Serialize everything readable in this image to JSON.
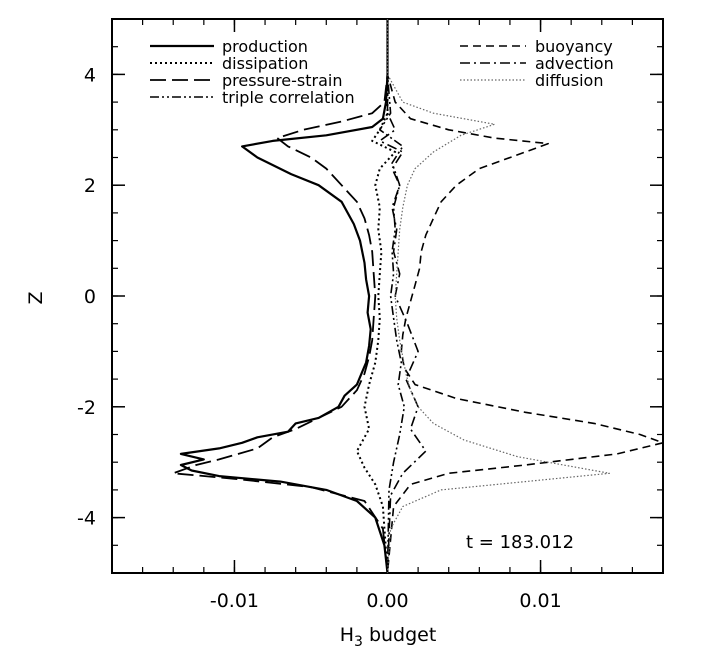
{
  "chart_data": {
    "type": "line",
    "xlabel": "H",
    "xlabel_sub": "3",
    "xlabel_rest": " budget",
    "ylabel": "Z",
    "xlim": [
      -0.018,
      0.018
    ],
    "ylim": [
      -5,
      5
    ],
    "xticks": [
      -0.01,
      0.0,
      0.01
    ],
    "xtick_labels": [
      "-0.01",
      "0.00",
      "0.01"
    ],
    "yticks": [
      -4,
      -2,
      0,
      2,
      4
    ],
    "ytick_labels": [
      "-4",
      "-2",
      "0",
      "2",
      "4"
    ],
    "annotation": "t = 183.012",
    "grid": false,
    "legend_placement": "top",
    "series": [
      {
        "name": "production",
        "style": "solid",
        "x": [
          0,
          0,
          -0.0001,
          -0.0003,
          -0.001,
          -0.004,
          -0.0075,
          -0.0095,
          -0.0085,
          -0.0063,
          -0.0045,
          -0.003,
          -0.0022,
          -0.0018,
          -0.0015,
          -0.0014,
          -0.0012,
          -0.0013,
          -0.0011,
          -0.0012,
          -0.0014,
          -0.0017,
          -0.002,
          -0.0028,
          -0.0032,
          -0.0045,
          -0.006,
          -0.0065,
          -0.0085,
          -0.0095,
          -0.011,
          -0.0135,
          -0.012,
          -0.0135,
          -0.0128,
          -0.011,
          -0.007,
          -0.004,
          -0.002,
          -0.0008,
          -0.0002,
          0
        ],
        "y": [
          5,
          4,
          3.5,
          3.2,
          3.05,
          2.9,
          2.8,
          2.7,
          2.5,
          2.2,
          2.0,
          1.7,
          1.3,
          1.0,
          0.6,
          0.3,
          0.0,
          -0.3,
          -0.6,
          -0.9,
          -1.2,
          -1.4,
          -1.6,
          -1.8,
          -2.0,
          -2.2,
          -2.3,
          -2.45,
          -2.55,
          -2.65,
          -2.75,
          -2.85,
          -2.95,
          -3.05,
          -3.15,
          -3.25,
          -3.35,
          -3.5,
          -3.7,
          -4.0,
          -4.5,
          -5
        ]
      },
      {
        "name": "dissipation",
        "style": "dotted",
        "x": [
          0,
          0,
          0,
          -0.0005,
          -0.001,
          0.0005,
          -0.0005,
          -0.0008,
          -0.0005,
          -0.0006,
          -0.0004,
          -0.0005,
          -0.0006,
          -0.0005,
          -0.0006,
          -0.0008,
          -0.0012,
          -0.0015,
          -0.0012,
          -0.002,
          -0.0015,
          -0.0008,
          -0.0003,
          0
        ],
        "y": [
          5,
          4,
          3.3,
          3.0,
          2.8,
          2.6,
          2.3,
          2.0,
          1.6,
          1.2,
          0.8,
          0.4,
          0.0,
          -0.4,
          -0.8,
          -1.2,
          -1.6,
          -2.0,
          -2.4,
          -2.8,
          -3.1,
          -3.4,
          -3.8,
          -5
        ]
      },
      {
        "name": "pressure-strain",
        "style": "longdash",
        "x": [
          0,
          0,
          -0.0002,
          -0.001,
          -0.003,
          -0.0055,
          -0.0072,
          -0.0065,
          -0.005,
          -0.004,
          -0.003,
          -0.002,
          -0.0015,
          -0.0012,
          -0.001,
          -0.0009,
          -0.0008,
          -0.0009,
          -0.001,
          -0.0012,
          -0.0015,
          -0.002,
          -0.003,
          -0.0045,
          -0.006,
          -0.0075,
          -0.0085,
          -0.011,
          -0.0125,
          -0.014,
          -0.01,
          -0.005,
          -0.0015,
          -0.0003,
          0
        ],
        "y": [
          5,
          4,
          3.5,
          3.3,
          3.15,
          3.0,
          2.85,
          2.7,
          2.5,
          2.3,
          2.0,
          1.7,
          1.4,
          1.1,
          0.8,
          0.4,
          0.0,
          -0.4,
          -0.8,
          -1.1,
          -1.4,
          -1.7,
          -2.0,
          -2.2,
          -2.4,
          -2.55,
          -2.75,
          -2.95,
          -3.05,
          -3.2,
          -3.3,
          -3.45,
          -3.7,
          -4.2,
          -5
        ]
      },
      {
        "name": "triple correlation",
        "style": "dashdotdot",
        "x": [
          0,
          0,
          0.0002,
          -0.0005,
          0.001,
          0.0003,
          0.0008,
          0.0004,
          0.0005,
          0.0003,
          0.0004,
          0.0002,
          0.0004,
          0.0006,
          0.0009,
          0.0007,
          0.0011,
          0.0008,
          0.0004,
          0.0001,
          0
        ],
        "y": [
          5,
          4,
          3.3,
          3.0,
          2.7,
          2.4,
          2.0,
          1.6,
          1.2,
          0.8,
          0.4,
          0.0,
          -0.4,
          -0.8,
          -1.2,
          -1.6,
          -2.0,
          -2.5,
          -3.0,
          -3.5,
          -5
        ]
      },
      {
        "name": "buoyancy",
        "style": "dash",
        "x": [
          0,
          0,
          0.0005,
          0.0015,
          0.004,
          0.007,
          0.0105,
          0.009,
          0.006,
          0.0045,
          0.0035,
          0.003,
          0.0025,
          0.0022,
          0.0021,
          0.0018,
          0.0015,
          0.0012,
          0.001,
          0.0009,
          0.0011,
          0.0018,
          0.0045,
          0.009,
          0.0135,
          0.0165,
          0.018,
          0.015,
          0.009,
          0.004,
          0.0015,
          0.0004,
          0
        ],
        "y": [
          5,
          4,
          3.5,
          3.2,
          3.0,
          2.85,
          2.75,
          2.6,
          2.3,
          2.0,
          1.7,
          1.4,
          1.1,
          0.8,
          0.5,
          0.2,
          -0.1,
          -0.4,
          -0.7,
          -1.0,
          -1.3,
          -1.6,
          -1.85,
          -2.1,
          -2.3,
          -2.5,
          -2.65,
          -2.85,
          -3.05,
          -3.2,
          -3.4,
          -3.8,
          -5
        ]
      },
      {
        "name": "advection",
        "style": "dashdot",
        "x": [
          0,
          0,
          0,
          0.0005,
          -0.0005,
          0.001,
          0.0003,
          0.0008,
          0.0003,
          0.0006,
          0.0004,
          0.0008,
          0.0005,
          0.0013,
          0.002,
          0.0012,
          0.002,
          0.0015,
          0.0025,
          0.001,
          0.0002,
          0
        ],
        "y": [
          5,
          4,
          3.3,
          3.0,
          2.8,
          2.6,
          2.3,
          2.0,
          1.6,
          1.2,
          0.8,
          0.4,
          0.0,
          -0.5,
          -1.0,
          -1.5,
          -2.0,
          -2.4,
          -2.8,
          -3.2,
          -3.6,
          -5
        ]
      },
      {
        "name": "diffusion",
        "style": "finedot",
        "x": [
          0,
          0,
          0.001,
          0.003,
          0.007,
          0.0048,
          0.003,
          0.0018,
          0.0013,
          0.001,
          0.0008,
          0.0007,
          0.0006,
          0.0005,
          0.0006,
          0.0008,
          0.001,
          0.0012,
          0.0015,
          0.002,
          0.003,
          0.005,
          0.0085,
          0.0145,
          0.009,
          0.0035,
          0.001,
          0.0002,
          0
        ],
        "y": [
          5,
          4,
          3.5,
          3.3,
          3.1,
          2.9,
          2.6,
          2.3,
          2.0,
          1.6,
          1.2,
          0.8,
          0.4,
          0.0,
          -0.4,
          -0.8,
          -1.1,
          -1.4,
          -1.7,
          -2.0,
          -2.3,
          -2.6,
          -2.9,
          -3.2,
          -3.35,
          -3.5,
          -3.8,
          -4.2,
          -5
        ]
      }
    ]
  }
}
